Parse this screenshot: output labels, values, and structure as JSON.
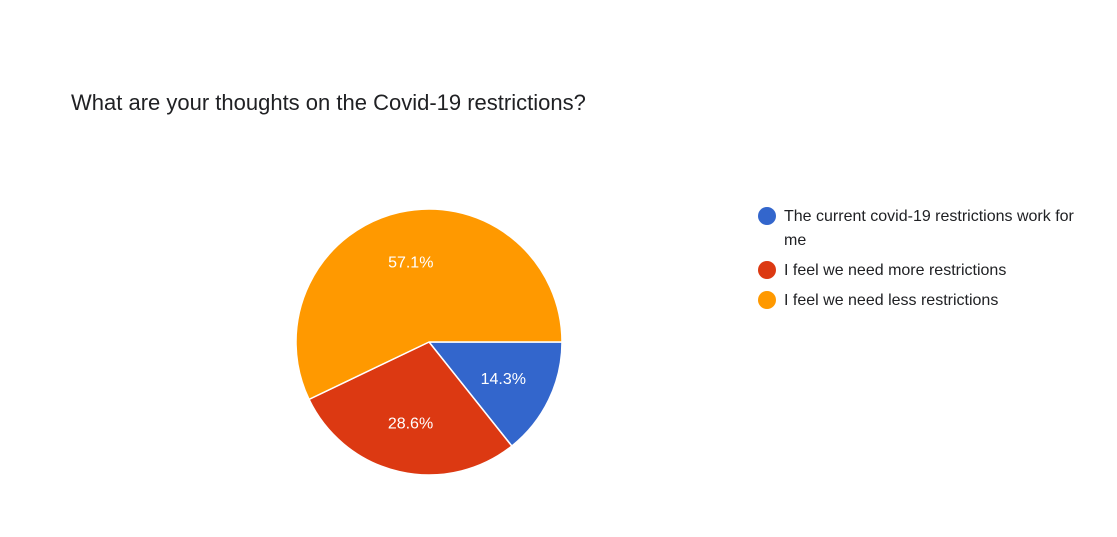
{
  "chart_data": {
    "type": "pie",
    "title": "What are your thoughts on the Covid-19 restrictions?",
    "categories": [
      "The current covid-19 restrictions work for me",
      "I feel we need more restrictions",
      "I feel we need less restrictions"
    ],
    "values": [
      14.3,
      28.6,
      57.1
    ],
    "labels": [
      "14.3%",
      "28.6%",
      "57.1%"
    ],
    "colors": [
      "#3366cc",
      "#dc3912",
      "#ff9900"
    ],
    "legend_position": "right"
  }
}
